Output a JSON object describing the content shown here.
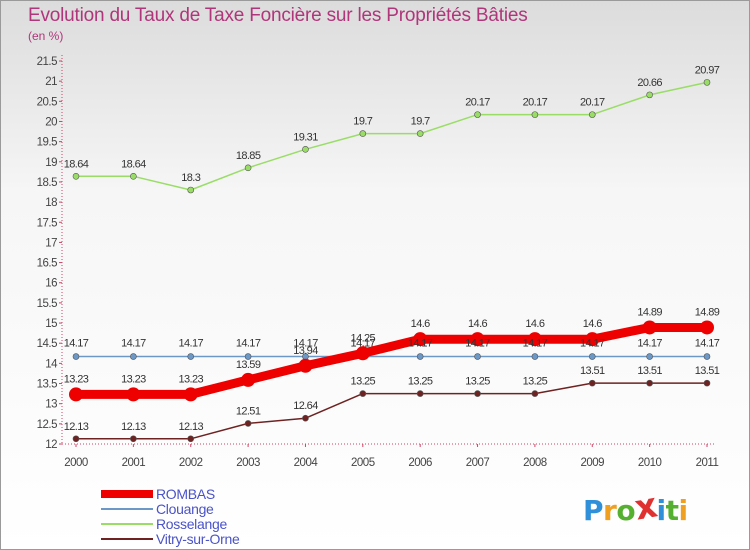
{
  "title": "Evolution du Taux de Taxe Foncière sur les Propriétés Bâties",
  "unit_label": "(en %)",
  "colors": {
    "title": "#b0357a",
    "axis_text": "#444444",
    "legend_text": "#4a53c8",
    "ROMBAS": "#ee0000",
    "Clouange": "#6b98c6",
    "Rosselange": "#99dd66",
    "Vitry-sur-Orne": "#6e2222"
  },
  "chart_data": {
    "type": "line",
    "title": "Evolution du Taux de Taxe Foncière sur les Propriétés Bâties",
    "xlabel": "",
    "ylabel": "(en %)",
    "x": [
      "2000",
      "2001",
      "2002",
      "2003",
      "2004",
      "2005",
      "2006",
      "2007",
      "2008",
      "2009",
      "2010",
      "2011"
    ],
    "yticks": [
      "12",
      "12.5",
      "13",
      "13.5",
      "14",
      "14.5",
      "15",
      "15.5",
      "16",
      "16.5",
      "17",
      "17.5",
      "18",
      "18.5",
      "19",
      "19.5",
      "20",
      "20.5",
      "21",
      "21.5"
    ],
    "ylim": [
      12,
      21.5
    ],
    "grid": false,
    "legend_position": "bottom-left",
    "series": [
      {
        "name": "ROMBAS",
        "values": [
          13.23,
          13.23,
          13.23,
          13.59,
          13.94,
          14.25,
          14.6,
          14.6,
          14.6,
          14.6,
          14.89,
          14.89
        ],
        "labels": [
          "13.23",
          "13.23",
          "13.23",
          "13.59",
          "13.94",
          "14.25",
          "14.6",
          "14.6",
          "14.6",
          "14.6",
          "14.89",
          "14.89"
        ]
      },
      {
        "name": "Clouange",
        "values": [
          14.17,
          14.17,
          14.17,
          14.17,
          14.17,
          14.17,
          14.17,
          14.17,
          14.17,
          14.17,
          14.17,
          14.17
        ],
        "labels": [
          "14.17",
          "14.17",
          "14.17",
          "14.17",
          "14.17",
          "14.17",
          "14.17",
          "14.17",
          "14.17",
          "14.17",
          "14.17",
          "14.17"
        ]
      },
      {
        "name": "Rosselange",
        "values": [
          18.64,
          18.64,
          18.3,
          18.85,
          19.31,
          19.7,
          19.7,
          20.17,
          20.17,
          20.17,
          20.66,
          20.97
        ],
        "labels": [
          "18.64",
          "18.64",
          "18.3",
          "18.85",
          "19.31",
          "19.7",
          "19.7",
          "20.17",
          "20.17",
          "20.17",
          "20.66",
          "20.97"
        ]
      },
      {
        "name": "Vitry-sur-Orne",
        "values": [
          12.13,
          12.13,
          12.13,
          12.51,
          12.64,
          13.25,
          13.25,
          13.25,
          13.25,
          13.51,
          13.51,
          13.51
        ],
        "labels": [
          "12.13",
          "12.13",
          "12.13",
          "12.51",
          "12.64",
          "13.25",
          "13.25",
          "13.25",
          "13.25",
          "13.51",
          "13.51",
          "13.51"
        ]
      }
    ]
  },
  "logo": {
    "letters": [
      "P",
      "r",
      "o",
      "x",
      "i",
      "t",
      "i"
    ],
    "colors": [
      "#2f8fd8",
      "#f0a020",
      "#55b030",
      "#e03030",
      "#2f8fd8",
      "#55b030",
      "#f0a020"
    ]
  }
}
